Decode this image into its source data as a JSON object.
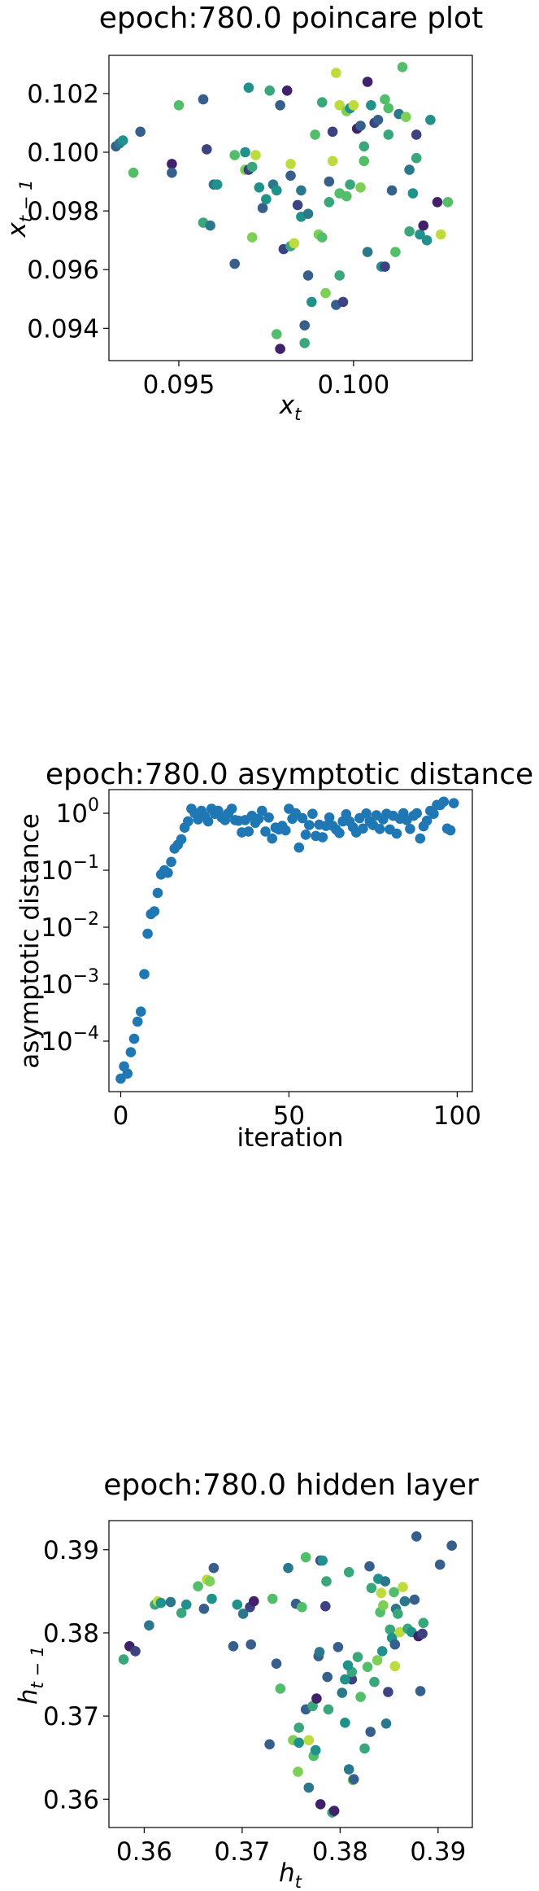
{
  "chart_data": [
    {
      "type": "scatter",
      "title": "epoch:780.0 poincare plot",
      "xlabel_base": "x",
      "xlabel_sub": "t",
      "ylabel_base": "x",
      "ylabel_sub": "t − 1",
      "xlim": [
        0.093,
        0.1034
      ],
      "ylim": [
        0.0929,
        0.1033
      ],
      "x_ticks": [
        0.095,
        0.1
      ],
      "x_tick_labels": [
        "0.095",
        "0.100"
      ],
      "y_ticks": [
        0.094,
        0.096,
        0.098,
        0.1,
        0.102
      ],
      "y_tick_labels": [
        "0.094",
        "0.096",
        "0.098",
        "0.100",
        "0.102"
      ],
      "colormap": "viridis",
      "colormap_stops": [
        "#440154",
        "#3b528b",
        "#21918c",
        "#5ec962",
        "#fde725"
      ],
      "points": [
        [
          0.0932,
          0.1002,
          0.3
        ],
        [
          0.0933,
          0.1003,
          0.4
        ],
        [
          0.0934,
          0.1004,
          0.5
        ],
        [
          0.0937,
          0.0993,
          0.7
        ],
        [
          0.0939,
          0.1007,
          0.3
        ],
        [
          0.0948,
          0.0996,
          0.1
        ],
        [
          0.0948,
          0.0993,
          0.3
        ],
        [
          0.095,
          0.1016,
          0.7
        ],
        [
          0.0957,
          0.0976,
          0.6
        ],
        [
          0.0957,
          0.1018,
          0.3
        ],
        [
          0.0958,
          0.1001,
          0.2
        ],
        [
          0.0959,
          0.0975,
          0.4
        ],
        [
          0.096,
          0.0989,
          0.4
        ],
        [
          0.0966,
          0.0962,
          0.3
        ],
        [
          0.0966,
          0.0999,
          0.7
        ],
        [
          0.0969,
          0.1,
          0.5
        ],
        [
          0.0969,
          0.0994,
          0.8
        ],
        [
          0.097,
          0.1022,
          0.5
        ],
        [
          0.097,
          0.0994,
          0.2
        ],
        [
          0.0971,
          0.0971,
          0.8
        ],
        [
          0.0971,
          0.0995,
          0.6
        ],
        [
          0.0972,
          0.0999,
          0.9
        ],
        [
          0.0973,
          0.0988,
          0.5
        ],
        [
          0.0974,
          0.0981,
          0.3
        ],
        [
          0.0976,
          0.1021,
          0.6
        ],
        [
          0.0977,
          0.0989,
          0.4
        ],
        [
          0.0978,
          0.0987,
          0.5
        ],
        [
          0.0978,
          0.0938,
          0.7
        ],
        [
          0.0979,
          0.1016,
          0.3
        ],
        [
          0.0979,
          0.0933,
          0.1
        ],
        [
          0.098,
          0.0967,
          0.2
        ],
        [
          0.0981,
          0.1021,
          0.1
        ],
        [
          0.0982,
          0.0996,
          0.9
        ],
        [
          0.0982,
          0.0992,
          0.3
        ],
        [
          0.0982,
          0.0968,
          0.6
        ],
        [
          0.0983,
          0.0969,
          0.9
        ],
        [
          0.0984,
          0.0982,
          0.2
        ],
        [
          0.0985,
          0.0987,
          0.4
        ],
        [
          0.0985,
          0.0978,
          0.5
        ],
        [
          0.0986,
          0.0941,
          0.3
        ],
        [
          0.0986,
          0.0935,
          0.6
        ],
        [
          0.0987,
          0.0958,
          0.3
        ],
        [
          0.0987,
          0.0979,
          0.4
        ],
        [
          0.0989,
          0.1006,
          0.7
        ],
        [
          0.099,
          0.0972,
          0.8
        ],
        [
          0.0991,
          0.0971,
          0.7
        ],
        [
          0.0991,
          0.1017,
          0.6
        ],
        [
          0.0992,
          0.0952,
          0.8
        ],
        [
          0.0993,
          0.0983,
          0.6
        ],
        [
          0.0993,
          0.099,
          0.3
        ],
        [
          0.0994,
          0.1007,
          0.2
        ],
        [
          0.0994,
          0.0997,
          0.9
        ],
        [
          0.0995,
          0.1027,
          0.9
        ],
        [
          0.0995,
          0.0948,
          0.3
        ],
        [
          0.0996,
          0.1016,
          0.9
        ],
        [
          0.0996,
          0.0986,
          0.7
        ],
        [
          0.0996,
          0.0958,
          0.6
        ],
        [
          0.0997,
          0.0949,
          0.2
        ],
        [
          0.0998,
          0.1014,
          0.8
        ],
        [
          0.0998,
          0.0985,
          0.7
        ],
        [
          0.0999,
          0.1015,
          0.5
        ],
        [
          0.0999,
          0.0989,
          0.6
        ],
        [
          0.1,
          0.1016,
          0.9
        ],
        [
          0.1001,
          0.1008,
          0.1
        ],
        [
          0.1002,
          0.1009,
          0.3
        ],
        [
          0.1003,
          0.1002,
          0.6
        ],
        [
          0.1003,
          0.0997,
          0.7
        ],
        [
          0.1004,
          0.1024,
          0.1
        ],
        [
          0.1004,
          0.0966,
          0.4
        ],
        [
          0.1005,
          0.1016,
          0.5
        ],
        [
          0.1006,
          0.101,
          0.2
        ],
        [
          0.1007,
          0.1011,
          0.3
        ],
        [
          0.1008,
          0.0961,
          0.5
        ],
        [
          0.1009,
          0.1018,
          0.7
        ],
        [
          0.1009,
          0.0961,
          0.2
        ],
        [
          0.101,
          0.1006,
          0.6
        ],
        [
          0.101,
          0.1015,
          0.7
        ],
        [
          0.1011,
          0.0987,
          0.3
        ],
        [
          0.1012,
          0.0966,
          0.7
        ],
        [
          0.1013,
          0.1013,
          0.4
        ],
        [
          0.1014,
          0.1029,
          0.7
        ],
        [
          0.1015,
          0.1012,
          0.8
        ],
        [
          0.1016,
          0.0973,
          0.6
        ],
        [
          0.1017,
          0.0986,
          0.5
        ],
        [
          0.1018,
          0.1006,
          0.2
        ],
        [
          0.1019,
          0.0972,
          0.5
        ],
        [
          0.102,
          0.0975,
          0.1
        ],
        [
          0.1021,
          0.097,
          0.5
        ],
        [
          0.1022,
          0.1011,
          0.5
        ],
        [
          0.1024,
          0.0983,
          0.1
        ],
        [
          0.1025,
          0.0972,
          0.9
        ],
        [
          0.1027,
          0.0983,
          0.7
        ],
        [
          0.1016,
          0.0994,
          0.4
        ],
        [
          0.1018,
          0.0998,
          0.6
        ],
        [
          0.0961,
          0.0989,
          0.5
        ],
        [
          0.0988,
          0.0949,
          0.5
        ],
        [
          0.1002,
          0.0988,
          0.8
        ],
        [
          0.0975,
          0.0984,
          0.5
        ]
      ]
    },
    {
      "type": "scatter",
      "title": "epoch:780.0 asymptotic distance",
      "xlabel": "iteration",
      "ylabel": "asymptotic distance",
      "xlim": [
        -3.5,
        104.5
      ],
      "ylog": true,
      "ylim": [
        1.3e-05,
        2.6
      ],
      "x_ticks": [
        0,
        50,
        100
      ],
      "x_tick_labels": [
        "0",
        "50",
        "100"
      ],
      "y_ticks_exponent": [
        -4,
        -3,
        -2,
        -1,
        0
      ],
      "y_tick_base": "10",
      "color": "#1f77b4",
      "x": [
        0,
        1,
        2,
        3,
        4,
        5,
        6,
        7,
        8,
        9,
        10,
        11,
        12,
        13,
        14,
        15,
        16,
        17,
        18,
        19,
        20,
        21,
        22,
        23,
        24,
        25,
        26,
        27,
        28,
        29,
        30,
        31,
        32,
        33,
        34,
        35,
        36,
        37,
        38,
        39,
        40,
        41,
        42,
        43,
        44,
        45,
        46,
        47,
        48,
        49,
        50,
        51,
        52,
        53,
        54,
        55,
        56,
        57,
        58,
        59,
        60,
        61,
        62,
        63,
        64,
        65,
        66,
        67,
        68,
        69,
        70,
        71,
        72,
        73,
        74,
        75,
        76,
        77,
        78,
        79,
        80,
        81,
        82,
        83,
        84,
        85,
        86,
        87,
        88,
        89,
        90,
        91,
        92,
        93,
        94,
        95,
        96,
        97,
        98,
        99
      ],
      "y": [
        2.2e-05,
        3.6e-05,
        2.7e-05,
        6.4e-05,
        0.00011,
        0.00022,
        0.00033,
        0.0015,
        0.0077,
        0.017,
        0.019,
        0.04,
        0.084,
        0.1,
        0.09,
        0.14,
        0.24,
        0.28,
        0.35,
        0.56,
        0.72,
        1.2,
        1.0,
        0.78,
        1.1,
        0.89,
        0.72,
        1.2,
        0.98,
        1.1,
        0.84,
        0.76,
        1.0,
        1.2,
        0.76,
        0.74,
        0.46,
        0.76,
        0.48,
        0.9,
        0.68,
        0.8,
        1.1,
        0.48,
        0.84,
        0.36,
        0.56,
        0.52,
        0.6,
        0.5,
        1.2,
        0.8,
        1.0,
        0.25,
        0.82,
        0.42,
        0.62,
        0.98,
        0.4,
        0.63,
        0.38,
        0.6,
        0.84,
        0.6,
        0.52,
        0.45,
        0.72,
        0.96,
        0.72,
        0.57,
        0.46,
        0.82,
        0.54,
        0.99,
        0.72,
        0.62,
        0.92,
        0.53,
        0.78,
        0.98,
        0.52,
        0.9,
        0.44,
        0.8,
        1.0,
        0.76,
        0.53,
        0.9,
        1.0,
        0.36,
        0.59,
        0.74,
        1.1,
        0.98,
        1.4,
        1.4,
        1.6,
        0.54,
        0.5,
        1.5
      ]
    },
    {
      "type": "scatter",
      "title": "epoch:780.0 hidden layer",
      "xlabel_base": "h",
      "xlabel_sub": "t",
      "ylabel_base": "h",
      "ylabel_sub": "t − 1",
      "xlim": [
        0.3564,
        0.3935
      ],
      "ylim": [
        0.3566,
        0.3935
      ],
      "x_ticks": [
        0.36,
        0.37,
        0.38,
        0.39
      ],
      "x_tick_labels": [
        "0.36",
        "0.37",
        "0.38",
        "0.39"
      ],
      "y_ticks": [
        0.36,
        0.37,
        0.38,
        0.39
      ],
      "y_tick_labels": [
        "0.36",
        "0.37",
        "0.38",
        "0.39"
      ],
      "colormap": "viridis",
      "colormap_stops": [
        "#440154",
        "#3b528b",
        "#21918c",
        "#5ec962",
        "#fde725"
      ],
      "points": [
        [
          0.3579,
          0.3768,
          0.6
        ],
        [
          0.3585,
          0.3784,
          0.1
        ],
        [
          0.3591,
          0.3778,
          0.2
        ],
        [
          0.3605,
          0.3809,
          0.4
        ],
        [
          0.3611,
          0.3834,
          0.6
        ],
        [
          0.3614,
          0.3838,
          0.9
        ],
        [
          0.3617,
          0.3836,
          0.5
        ],
        [
          0.3627,
          0.3837,
          0.4
        ],
        [
          0.3638,
          0.3824,
          0.6
        ],
        [
          0.3643,
          0.3834,
          0.5
        ],
        [
          0.3655,
          0.3856,
          0.7
        ],
        [
          0.3661,
          0.3829,
          0.3
        ],
        [
          0.3664,
          0.3864,
          0.9
        ],
        [
          0.3667,
          0.3862,
          0.8
        ],
        [
          0.3669,
          0.3841,
          0.5
        ],
        [
          0.3671,
          0.3878,
          0.3
        ],
        [
          0.3691,
          0.3784,
          0.3
        ],
        [
          0.3695,
          0.3834,
          0.5
        ],
        [
          0.3708,
          0.3831,
          0.2
        ],
        [
          0.3709,
          0.3786,
          0.3
        ],
        [
          0.3712,
          0.3838,
          0.1
        ],
        [
          0.3728,
          0.3666,
          0.3
        ],
        [
          0.3731,
          0.3841,
          0.7
        ],
        [
          0.3735,
          0.3763,
          0.3
        ],
        [
          0.3739,
          0.3733,
          0.7
        ],
        [
          0.3747,
          0.3878,
          0.4
        ],
        [
          0.3752,
          0.3671,
          0.8
        ],
        [
          0.3755,
          0.3835,
          0.3
        ],
        [
          0.3757,
          0.3633,
          0.8
        ],
        [
          0.3758,
          0.3668,
          0.5
        ],
        [
          0.3758,
          0.3686,
          0.6
        ],
        [
          0.3761,
          0.3831,
          0.7
        ],
        [
          0.3765,
          0.3891,
          0.7
        ],
        [
          0.3765,
          0.3708,
          0.3
        ],
        [
          0.3768,
          0.3614,
          0.4
        ],
        [
          0.3772,
          0.3712,
          0.6
        ],
        [
          0.3773,
          0.3652,
          0.7
        ],
        [
          0.3776,
          0.3721,
          0.1
        ],
        [
          0.3778,
          0.3772,
          0.3
        ],
        [
          0.378,
          0.3887,
          0.2
        ],
        [
          0.378,
          0.3594,
          0.1
        ],
        [
          0.3782,
          0.3887,
          0.5
        ],
        [
          0.3785,
          0.3832,
          0.2
        ],
        [
          0.3786,
          0.3862,
          0.6
        ],
        [
          0.3787,
          0.3747,
          0.3
        ],
        [
          0.3788,
          0.3708,
          0.6
        ],
        [
          0.3792,
          0.3584,
          0.6
        ],
        [
          0.3794,
          0.3586,
          0.1
        ],
        [
          0.3798,
          0.3783,
          0.3
        ],
        [
          0.3802,
          0.3728,
          0.4
        ],
        [
          0.3805,
          0.3692,
          0.5
        ],
        [
          0.3809,
          0.3873,
          0.6
        ],
        [
          0.3809,
          0.3636,
          0.4
        ],
        [
          0.3812,
          0.3744,
          0.2
        ],
        [
          0.3813,
          0.3623,
          0.8
        ],
        [
          0.3814,
          0.3624,
          0.3
        ],
        [
          0.3818,
          0.3771,
          0.6
        ],
        [
          0.3821,
          0.3723,
          0.7
        ],
        [
          0.3825,
          0.3661,
          0.6
        ],
        [
          0.3828,
          0.3759,
          0.7
        ],
        [
          0.383,
          0.388,
          0.3
        ],
        [
          0.3831,
          0.3681,
          0.3
        ],
        [
          0.3832,
          0.3854,
          0.6
        ],
        [
          0.3835,
          0.3741,
          0.6
        ],
        [
          0.3838,
          0.3767,
          0.8
        ],
        [
          0.3839,
          0.3865,
          0.5
        ],
        [
          0.3841,
          0.3825,
          0.7
        ],
        [
          0.3842,
          0.3848,
          0.9
        ],
        [
          0.3844,
          0.3833,
          0.8
        ],
        [
          0.3846,
          0.3862,
          0.4
        ],
        [
          0.3847,
          0.3691,
          0.4
        ],
        [
          0.3849,
          0.3729,
          0.2
        ],
        [
          0.3851,
          0.3804,
          0.6
        ],
        [
          0.3853,
          0.3794,
          0.5
        ],
        [
          0.3856,
          0.376,
          0.9
        ],
        [
          0.3857,
          0.3829,
          0.4
        ],
        [
          0.3859,
          0.3823,
          0.6
        ],
        [
          0.3861,
          0.3801,
          0.9
        ],
        [
          0.3864,
          0.3855,
          0.9
        ],
        [
          0.3866,
          0.3838,
          0.4
        ],
        [
          0.3869,
          0.3805,
          0.6
        ],
        [
          0.3873,
          0.3801,
          0.5
        ],
        [
          0.3876,
          0.384,
          0.3
        ],
        [
          0.3878,
          0.3916,
          0.3
        ],
        [
          0.388,
          0.3796,
          0.1
        ],
        [
          0.3882,
          0.373,
          0.3
        ],
        [
          0.3884,
          0.3799,
          0.2
        ],
        [
          0.3885,
          0.3812,
          0.6
        ],
        [
          0.3902,
          0.3882,
          0.3
        ],
        [
          0.3914,
          0.3905,
          0.3
        ],
        [
          0.3768,
          0.3671,
          0.9
        ],
        [
          0.3775,
          0.3659,
          0.5
        ],
        [
          0.3779,
          0.3777,
          0.4
        ],
        [
          0.3805,
          0.3744,
          0.5
        ],
        [
          0.3701,
          0.3823,
          0.4
        ],
        [
          0.3843,
          0.3778,
          0.5
        ],
        [
          0.3812,
          0.3753,
          0.6
        ],
        [
          0.3855,
          0.3849,
          0.7
        ],
        [
          0.3856,
          0.3786,
          0.3
        ],
        [
          0.3808,
          0.3761,
          0.5
        ]
      ]
    }
  ]
}
